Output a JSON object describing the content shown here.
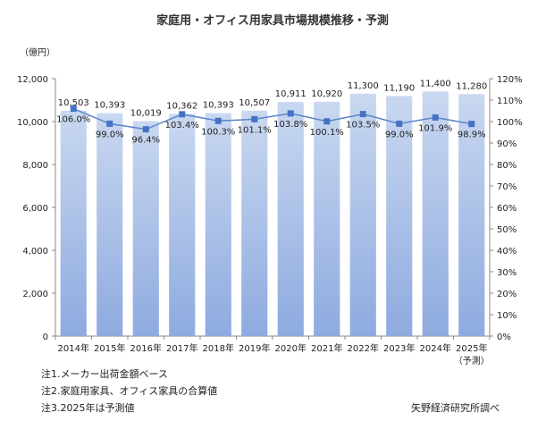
{
  "chart_data": {
    "type": "bar",
    "title": "家庭用・オフィス用家具市場規模推移・予測",
    "ylabel": "（億円）",
    "categories": [
      "2014年",
      "2015年",
      "2016年",
      "2017年",
      "2018年",
      "2019年",
      "2020年",
      "2021年",
      "2022年",
      "2023年",
      "2024年",
      "2025年"
    ],
    "category_sublabels": [
      "",
      "",
      "",
      "",
      "",
      "",
      "",
      "",
      "",
      "",
      "",
      "（予測）"
    ],
    "series": [
      {
        "type": "bar",
        "axis": "left",
        "values": [
          10503,
          10393,
          10019,
          10362,
          10393,
          10507,
          10911,
          10920,
          11300,
          11190,
          11400,
          11280
        ],
        "labels": [
          "10,503",
          "10,393",
          "10,019",
          "10,362",
          "10,393",
          "10,507",
          "10,911",
          "10,920",
          "11,300",
          "11,190",
          "11,400",
          "11,280"
        ]
      },
      {
        "type": "line",
        "axis": "right",
        "values": [
          106.0,
          99.0,
          96.4,
          103.4,
          100.3,
          101.1,
          103.8,
          100.1,
          103.5,
          99.0,
          101.9,
          98.9
        ],
        "labels": [
          "106.0%",
          "99.0%",
          "96.4%",
          "103.4%",
          "100.3%",
          "101.1%",
          "103.8%",
          "100.1%",
          "103.5%",
          "99.0%",
          "101.9%",
          "98.9%"
        ]
      }
    ],
    "ylim": [
      0,
      12000
    ],
    "y2lim": [
      0,
      120
    ],
    "yticks": [
      "0",
      "2,000",
      "4,000",
      "6,000",
      "8,000",
      "10,000",
      "12,000"
    ],
    "y2ticks": [
      "0%",
      "10%",
      "20%",
      "30%",
      "40%",
      "50%",
      "60%",
      "70%",
      "80%",
      "90%",
      "100%",
      "110%",
      "120%"
    ],
    "grid": false,
    "legend": "none",
    "colors": {
      "bar_top": "#c9d8f0",
      "bar_bottom": "#8eaadf",
      "line": "#5b86c8",
      "marker": "#4472c4"
    }
  },
  "notes": [
    "注1.メーカー出荷金額ベース",
    "注2.家庭用家具、オフィス家具の合算値",
    "注3.2025年は予測値"
  ],
  "source": "矢野経済研究所調べ"
}
